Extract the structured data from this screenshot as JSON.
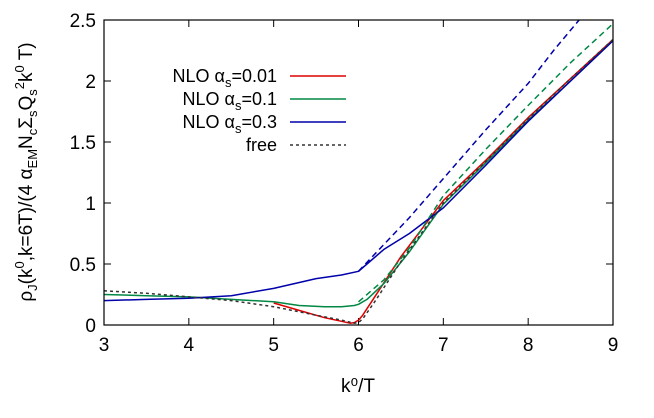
{
  "chart_data": {
    "type": "line",
    "xlabel": "k⁰/T",
    "ylabel": "ρ_J(k⁰,k=6T)/(4 α_EM N_c Σ_s Q_s² k⁰ T)",
    "xlim": [
      3,
      9
    ],
    "ylim": [
      0,
      2.5
    ],
    "xticks": [
      "3",
      "4",
      "5",
      "6",
      "7",
      "8",
      "9"
    ],
    "yticks": [
      "0",
      "0.5",
      "1",
      "1.5",
      "2",
      "2.5"
    ],
    "grid": false,
    "legend_position": "top-left",
    "series": [
      {
        "name": "NLO αs=0.01",
        "name_parts": {
          "prefix": "NLO α",
          "sub": "s",
          "suffix": "=0.01"
        },
        "color": "#dd0000",
        "style": "solid",
        "x": [
          5.0,
          5.3,
          5.6,
          5.8,
          5.9,
          5.95,
          6.0,
          6.05,
          6.2,
          6.5,
          7.0,
          7.5,
          8.0,
          8.5,
          9.0
        ],
        "y": [
          0.18,
          0.12,
          0.06,
          0.03,
          0.015,
          0.02,
          0.04,
          0.08,
          0.24,
          0.56,
          1.02,
          1.35,
          1.7,
          2.02,
          2.34
        ]
      },
      {
        "name": "NLO αs=0.1",
        "name_parts": {
          "prefix": "NLO α",
          "sub": "s",
          "suffix": "=0.1"
        },
        "color": "#008844",
        "style": "solid",
        "x": [
          3.0,
          3.5,
          4.0,
          4.5,
          5.0,
          5.3,
          5.6,
          5.8,
          5.95,
          6.0,
          6.1,
          6.3,
          6.6,
          7.0,
          7.5,
          8.0,
          8.5,
          9.0
        ],
        "y": [
          0.25,
          0.24,
          0.23,
          0.21,
          0.19,
          0.16,
          0.15,
          0.15,
          0.16,
          0.17,
          0.21,
          0.34,
          0.6,
          0.99,
          1.33,
          1.68,
          2.0,
          2.33
        ]
      },
      {
        "name": "NLO αs=0.3",
        "name_parts": {
          "prefix": "NLO α",
          "sub": "s",
          "suffix": "=0.3"
        },
        "color": "#0000aa",
        "style": "solid",
        "x": [
          3.0,
          3.5,
          4.0,
          4.5,
          5.0,
          5.5,
          5.8,
          6.0,
          6.1,
          6.3,
          6.6,
          7.0,
          7.5,
          8.0,
          8.5,
          9.0
        ],
        "y": [
          0.2,
          0.21,
          0.22,
          0.24,
          0.3,
          0.38,
          0.41,
          0.44,
          0.5,
          0.62,
          0.75,
          0.96,
          1.31,
          1.67,
          2.0,
          2.33
        ]
      },
      {
        "name": "free",
        "color": "#333333",
        "style": "dotted",
        "x": [
          3.0,
          3.5,
          4.0,
          4.5,
          5.0,
          5.5,
          5.8,
          5.95,
          6.0,
          6.05,
          6.2,
          6.5,
          7.0,
          7.5,
          8.0,
          8.5,
          9.0
        ],
        "y": [
          0.28,
          0.26,
          0.23,
          0.2,
          0.15,
          0.08,
          0.04,
          0.015,
          0.02,
          0.05,
          0.2,
          0.52,
          1.0,
          1.34,
          1.69,
          2.02,
          2.34
        ]
      },
      {
        "name": "",
        "color": "#008844",
        "style": "dashed",
        "x": [
          6.0,
          6.3,
          6.6,
          7.0,
          7.5,
          8.0,
          8.5,
          9.0
        ],
        "y": [
          0.19,
          0.37,
          0.63,
          1.06,
          1.44,
          1.8,
          2.15,
          2.47
        ]
      },
      {
        "name": "",
        "color": "#0000aa",
        "style": "dashed",
        "x": [
          6.0,
          6.3,
          6.6,
          7.0,
          7.5,
          8.0,
          8.3,
          8.6
        ],
        "y": [
          0.44,
          0.66,
          0.88,
          1.2,
          1.6,
          1.98,
          2.25,
          2.5
        ]
      }
    ]
  }
}
